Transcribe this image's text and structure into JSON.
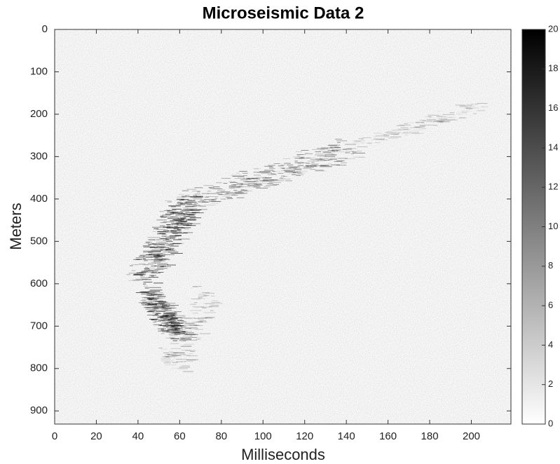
{
  "chart_data": {
    "type": "heatmap",
    "title": "Microseismic Data 2",
    "x_label": "Milliseconds",
    "y_label": "Meters",
    "xlim": [
      0,
      219
    ],
    "xticks": [
      0,
      20,
      40,
      60,
      80,
      100,
      120,
      140,
      160,
      180,
      200
    ],
    "ylim": [
      0,
      931
    ],
    "yticks": [
      0,
      100,
      200,
      300,
      400,
      500,
      600,
      700,
      800,
      900
    ],
    "y_reversed": true,
    "colormap": [
      "#ffffff",
      "#000000"
    ],
    "colorbar": {
      "lim": [
        0,
        20
      ],
      "ticks": [
        0,
        2,
        4,
        6,
        8,
        10,
        12,
        14,
        16,
        18,
        20
      ]
    }
  }
}
